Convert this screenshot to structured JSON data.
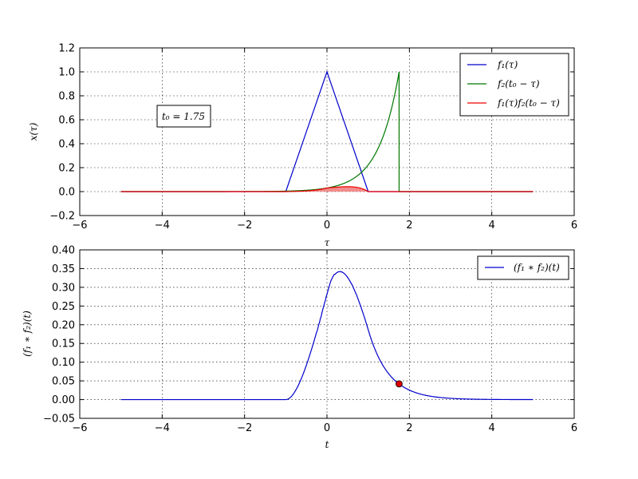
{
  "chart_data": [
    {
      "type": "line",
      "xlabel": "τ",
      "ylabel": "x(τ)",
      "xlim": [
        -6,
        6
      ],
      "ylim": [
        -0.2,
        1.2
      ],
      "xticks": [
        "−6",
        "−4",
        "−2",
        "0",
        "2",
        "4",
        "6"
      ],
      "yticks": [
        "−0.2",
        "0.0",
        "0.2",
        "0.4",
        "0.6",
        "0.8",
        "1.0",
        "1.2"
      ],
      "grid": true,
      "legend_position": "top-right",
      "annotation": "t₀ = 1.75",
      "t0": 1.75,
      "x_range": [
        -5,
        5
      ],
      "series": [
        {
          "name": "f₁(τ)",
          "color": "#0000cc",
          "definition": "triangle, peak 1 at τ=0, zero outside [−1, 1]"
        },
        {
          "name": "f₂(t₀ − τ)",
          "color": "#007700",
          "definition": "exp(−2(1.75 − τ)) for τ ≤ 1.75, else 0"
        },
        {
          "name": "f₁(τ)f₂(t₀ − τ)",
          "color": "#ee0000",
          "fill": "#f07070",
          "definition": "product of the two curves, shaded"
        }
      ]
    },
    {
      "type": "line",
      "xlabel": "t",
      "ylabel": "(f₁ ∗ f₂)(t)",
      "xlim": [
        -6,
        6
      ],
      "ylim": [
        -0.05,
        0.4
      ],
      "xticks": [
        "−6",
        "−4",
        "−2",
        "0",
        "2",
        "4",
        "6"
      ],
      "yticks": [
        "−0.05",
        "0.00",
        "0.05",
        "0.10",
        "0.15",
        "0.20",
        "0.25",
        "0.30",
        "0.35",
        "0.40"
      ],
      "grid": true,
      "legend_position": "top-right",
      "series": [
        {
          "name": "(f₁ ∗ f₂)(t)",
          "color": "#0000cc",
          "definition": "convolution of f₁ and f₂ for t in [−5, 5]; max ≈ 0.338 near t ≈ 0.33"
        }
      ],
      "marker": {
        "t": 1.75,
        "value": 0.042,
        "color": "#dd0000"
      }
    }
  ]
}
